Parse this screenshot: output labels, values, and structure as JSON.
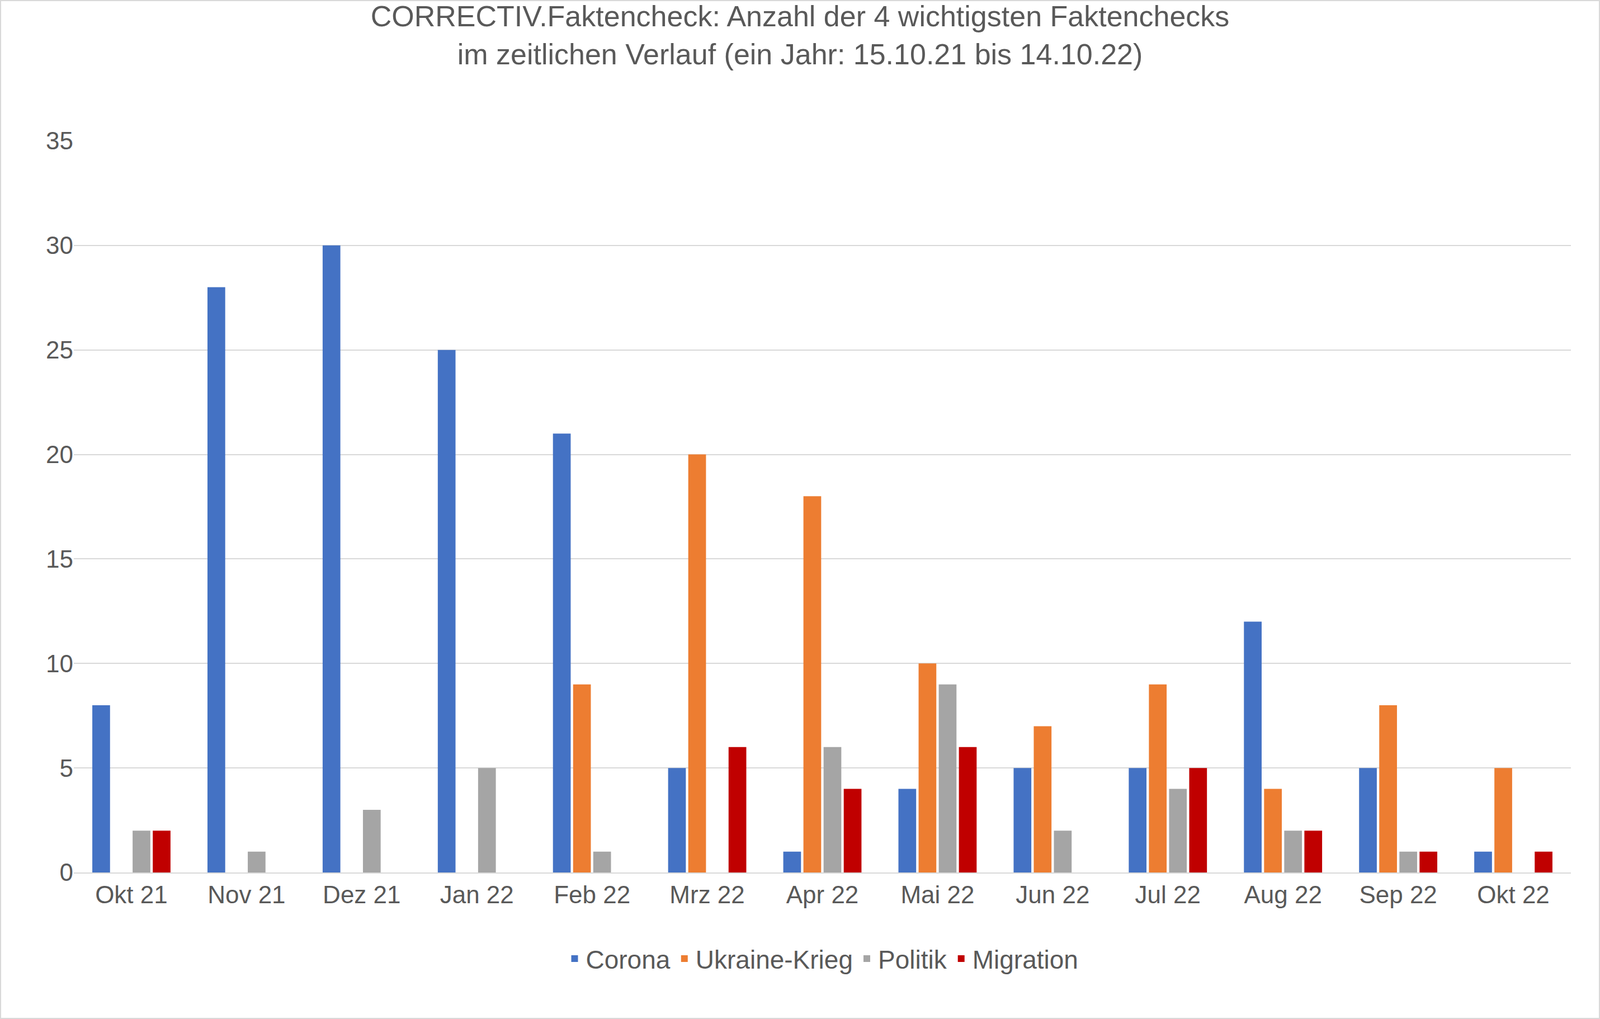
{
  "chart_data": {
    "type": "bar",
    "title": "CORRECTIV.Faktencheck: Anzahl der 4 wichtigsten Faktenchecks\nim zeitlichen Verlauf (ein Jahr: 15.10.21 bis 14.10.22)",
    "categories": [
      "Okt 21",
      "Nov 21",
      "Dez 21",
      "Jan 22",
      "Feb 22",
      "Mrz 22",
      "Apr 22",
      "Mai 22",
      "Jun 22",
      "Jul 22",
      "Aug 22",
      "Sep 22",
      "Okt 22"
    ],
    "series": [
      {
        "name": "Corona",
        "color": "#4472c4",
        "values": [
          8,
          28,
          30,
          25,
          21,
          5,
          1,
          4,
          5,
          5,
          12,
          5,
          1
        ]
      },
      {
        "name": "Ukraine-Krieg",
        "color": "#ed7d31",
        "values": [
          0,
          0,
          0,
          0,
          9,
          20,
          18,
          10,
          7,
          9,
          4,
          8,
          5
        ]
      },
      {
        "name": "Politik",
        "color": "#a5a5a5",
        "values": [
          2,
          1,
          3,
          5,
          1,
          0,
          6,
          9,
          2,
          4,
          2,
          1,
          0
        ]
      },
      {
        "name": "Migration",
        "color": "#c00000",
        "values": [
          2,
          0,
          0,
          0,
          0,
          6,
          4,
          6,
          0,
          5,
          2,
          1,
          1
        ]
      }
    ],
    "ylim": [
      0,
      35
    ],
    "yticks": [
      0,
      5,
      10,
      15,
      20,
      25,
      30,
      35
    ],
    "grid": true,
    "legend": "bottom"
  }
}
